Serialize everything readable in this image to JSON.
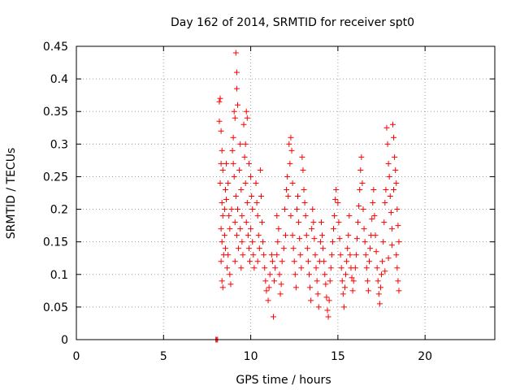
{
  "chart_data": {
    "type": "scatter",
    "title": "Day 162 of 2014, SRMTID for receiver spt0",
    "xlabel": "GPS time / hours",
    "ylabel": "SRMTID / TECUs",
    "xlim": [
      0,
      24
    ],
    "ylim": [
      0,
      0.45
    ],
    "xticks": [
      0,
      5,
      10,
      15,
      20
    ],
    "yticks": [
      0,
      0.05,
      0.1,
      0.15,
      0.2,
      0.25,
      0.3,
      0.35,
      0.4,
      0.45
    ],
    "xtick_labels": [
      "0",
      "5",
      "10",
      "15",
      "20"
    ],
    "ytick_labels": [
      "0",
      "0.05",
      "0.1",
      "0.15",
      "0.2",
      "0.25",
      "0.3",
      "0.35",
      "0.4",
      "0.45"
    ],
    "grid": true,
    "marker": "+",
    "series": [
      {
        "name": "SRMTID",
        "color": "#ff0000",
        "points": [
          [
            8.0,
            0.0
          ],
          [
            8.05,
            0.0
          ],
          [
            8.1,
            0.0
          ],
          [
            8.2,
            0.365
          ],
          [
            8.25,
            0.37
          ],
          [
            8.2,
            0.335
          ],
          [
            8.3,
            0.32
          ],
          [
            8.35,
            0.29
          ],
          [
            8.3,
            0.27
          ],
          [
            8.4,
            0.26
          ],
          [
            8.25,
            0.24
          ],
          [
            8.35,
            0.21
          ],
          [
            8.4,
            0.19
          ],
          [
            8.3,
            0.17
          ],
          [
            8.35,
            0.15
          ],
          [
            8.45,
            0.13
          ],
          [
            8.3,
            0.12
          ],
          [
            8.35,
            0.09
          ],
          [
            8.4,
            0.08
          ],
          [
            8.5,
            0.2
          ],
          [
            8.55,
            0.23
          ],
          [
            8.6,
            0.215
          ],
          [
            8.5,
            0.16
          ],
          [
            8.55,
            0.14
          ],
          [
            8.65,
            0.11
          ],
          [
            8.7,
            0.24
          ],
          [
            8.6,
            0.27
          ],
          [
            8.75,
            0.19
          ],
          [
            8.8,
            0.17
          ],
          [
            8.7,
            0.13
          ],
          [
            8.8,
            0.1
          ],
          [
            8.85,
            0.085
          ],
          [
            8.9,
            0.2
          ],
          [
            8.95,
            0.29
          ],
          [
            9.0,
            0.31
          ],
          [
            9.05,
            0.35
          ],
          [
            9.1,
            0.34
          ],
          [
            9.0,
            0.27
          ],
          [
            9.05,
            0.25
          ],
          [
            9.15,
            0.44
          ],
          [
            9.2,
            0.41
          ],
          [
            9.2,
            0.385
          ],
          [
            9.25,
            0.36
          ],
          [
            9.15,
            0.22
          ],
          [
            9.25,
            0.2
          ],
          [
            9.1,
            0.18
          ],
          [
            9.2,
            0.16
          ],
          [
            9.3,
            0.14
          ],
          [
            9.1,
            0.12
          ],
          [
            9.35,
            0.26
          ],
          [
            9.4,
            0.3
          ],
          [
            9.45,
            0.23
          ],
          [
            9.5,
            0.19
          ],
          [
            9.4,
            0.17
          ],
          [
            9.5,
            0.15
          ],
          [
            9.55,
            0.13
          ],
          [
            9.45,
            0.11
          ],
          [
            9.6,
            0.33
          ],
          [
            9.7,
            0.3
          ],
          [
            9.65,
            0.28
          ],
          [
            9.75,
            0.35
          ],
          [
            9.8,
            0.34
          ],
          [
            9.7,
            0.24
          ],
          [
            9.8,
            0.21
          ],
          [
            9.75,
            0.18
          ],
          [
            9.85,
            0.16
          ],
          [
            9.9,
            0.14
          ],
          [
            9.95,
            0.12
          ],
          [
            9.9,
            0.27
          ],
          [
            10.0,
            0.25
          ],
          [
            10.05,
            0.22
          ],
          [
            10.1,
            0.2
          ],
          [
            10.0,
            0.17
          ],
          [
            10.1,
            0.15
          ],
          [
            10.15,
            0.13
          ],
          [
            10.2,
            0.11
          ],
          [
            10.3,
            0.24
          ],
          [
            10.35,
            0.21
          ],
          [
            10.4,
            0.19
          ],
          [
            10.45,
            0.16
          ],
          [
            10.5,
            0.14
          ],
          [
            10.4,
            0.12
          ],
          [
            10.55,
            0.26
          ],
          [
            10.6,
            0.22
          ],
          [
            10.65,
            0.18
          ],
          [
            10.7,
            0.15
          ],
          [
            10.75,
            0.13
          ],
          [
            10.8,
            0.11
          ],
          [
            10.85,
            0.09
          ],
          [
            10.9,
            0.075
          ],
          [
            11.0,
            0.06
          ],
          [
            11.05,
            0.08
          ],
          [
            11.1,
            0.1
          ],
          [
            11.2,
            0.13
          ],
          [
            11.25,
            0.12
          ],
          [
            11.3,
            0.035
          ],
          [
            11.35,
            0.09
          ],
          [
            11.4,
            0.11
          ],
          [
            11.5,
            0.13
          ],
          [
            11.55,
            0.15
          ],
          [
            11.6,
            0.17
          ],
          [
            11.5,
            0.19
          ],
          [
            11.65,
            0.1
          ],
          [
            11.7,
            0.07
          ],
          [
            11.75,
            0.085
          ],
          [
            11.8,
            0.12
          ],
          [
            11.9,
            0.14
          ],
          [
            12.0,
            0.16
          ],
          [
            11.95,
            0.2
          ],
          [
            12.05,
            0.23
          ],
          [
            12.1,
            0.25
          ],
          [
            12.15,
            0.22
          ],
          [
            12.2,
            0.3
          ],
          [
            12.25,
            0.27
          ],
          [
            12.3,
            0.31
          ],
          [
            12.35,
            0.29
          ],
          [
            12.4,
            0.24
          ],
          [
            12.3,
            0.19
          ],
          [
            12.4,
            0.16
          ],
          [
            12.45,
            0.14
          ],
          [
            12.5,
            0.12
          ],
          [
            12.55,
            0.1
          ],
          [
            12.6,
            0.08
          ],
          [
            12.65,
            0.2
          ],
          [
            12.7,
            0.22
          ],
          [
            12.75,
            0.18
          ],
          [
            12.8,
            0.155
          ],
          [
            12.85,
            0.13
          ],
          [
            12.9,
            0.11
          ],
          [
            12.95,
            0.28
          ],
          [
            13.0,
            0.26
          ],
          [
            13.05,
            0.23
          ],
          [
            13.1,
            0.21
          ],
          [
            13.15,
            0.19
          ],
          [
            13.2,
            0.16
          ],
          [
            13.25,
            0.14
          ],
          [
            13.3,
            0.12
          ],
          [
            13.35,
            0.1
          ],
          [
            13.4,
            0.08
          ],
          [
            13.45,
            0.06
          ],
          [
            13.5,
            0.17
          ],
          [
            13.55,
            0.2
          ],
          [
            13.6,
            0.18
          ],
          [
            13.65,
            0.155
          ],
          [
            13.7,
            0.13
          ],
          [
            13.75,
            0.11
          ],
          [
            13.8,
            0.09
          ],
          [
            13.85,
            0.07
          ],
          [
            13.9,
            0.05
          ],
          [
            13.95,
            0.12
          ],
          [
            14.0,
            0.15
          ],
          [
            14.05,
            0.18
          ],
          [
            14.1,
            0.16
          ],
          [
            14.15,
            0.14
          ],
          [
            14.2,
            0.12
          ],
          [
            14.25,
            0.1
          ],
          [
            14.3,
            0.085
          ],
          [
            14.35,
            0.065
          ],
          [
            14.4,
            0.045
          ],
          [
            14.45,
            0.035
          ],
          [
            14.5,
            0.06
          ],
          [
            14.55,
            0.09
          ],
          [
            14.6,
            0.11
          ],
          [
            14.65,
            0.13
          ],
          [
            14.7,
            0.15
          ],
          [
            14.75,
            0.17
          ],
          [
            14.8,
            0.19
          ],
          [
            14.85,
            0.215
          ],
          [
            14.9,
            0.23
          ],
          [
            15.0,
            0.21
          ],
          [
            15.05,
            0.18
          ],
          [
            15.1,
            0.155
          ],
          [
            15.15,
            0.13
          ],
          [
            15.2,
            0.11
          ],
          [
            15.25,
            0.09
          ],
          [
            15.3,
            0.07
          ],
          [
            15.35,
            0.05
          ],
          [
            15.4,
            0.08
          ],
          [
            15.45,
            0.1
          ],
          [
            15.5,
            0.12
          ],
          [
            15.55,
            0.14
          ],
          [
            15.6,
            0.16
          ],
          [
            15.65,
            0.19
          ],
          [
            15.7,
            0.13
          ],
          [
            15.75,
            0.11
          ],
          [
            15.8,
            0.095
          ],
          [
            15.85,
            0.075
          ],
          [
            15.9,
            0.09
          ],
          [
            16.0,
            0.11
          ],
          [
            16.05,
            0.13
          ],
          [
            16.1,
            0.155
          ],
          [
            16.15,
            0.18
          ],
          [
            16.2,
            0.205
          ],
          [
            16.25,
            0.23
          ],
          [
            16.3,
            0.26
          ],
          [
            16.35,
            0.28
          ],
          [
            16.4,
            0.24
          ],
          [
            16.45,
            0.2
          ],
          [
            16.5,
            0.17
          ],
          [
            16.55,
            0.15
          ],
          [
            16.6,
            0.13
          ],
          [
            16.65,
            0.11
          ],
          [
            16.7,
            0.09
          ],
          [
            16.75,
            0.075
          ],
          [
            16.8,
            0.12
          ],
          [
            16.85,
            0.14
          ],
          [
            16.9,
            0.16
          ],
          [
            16.95,
            0.185
          ],
          [
            17.0,
            0.21
          ],
          [
            17.05,
            0.23
          ],
          [
            17.1,
            0.19
          ],
          [
            17.15,
            0.16
          ],
          [
            17.2,
            0.135
          ],
          [
            17.25,
            0.11
          ],
          [
            17.3,
            0.09
          ],
          [
            17.35,
            0.07
          ],
          [
            17.4,
            0.055
          ],
          [
            17.45,
            0.08
          ],
          [
            17.5,
            0.1
          ],
          [
            17.55,
            0.12
          ],
          [
            17.6,
            0.15
          ],
          [
            17.65,
            0.18
          ],
          [
            17.7,
            0.21
          ],
          [
            17.75,
            0.23
          ],
          [
            17.8,
            0.325
          ],
          [
            17.85,
            0.3
          ],
          [
            17.9,
            0.27
          ],
          [
            17.95,
            0.25
          ],
          [
            18.0,
            0.22
          ],
          [
            18.05,
            0.195
          ],
          [
            18.1,
            0.17
          ],
          [
            18.15,
            0.33
          ],
          [
            18.2,
            0.31
          ],
          [
            18.25,
            0.28
          ],
          [
            18.3,
            0.26
          ],
          [
            18.35,
            0.24
          ],
          [
            18.4,
            0.2
          ],
          [
            18.45,
            0.175
          ],
          [
            18.5,
            0.15
          ],
          [
            18.35,
            0.13
          ],
          [
            18.4,
            0.11
          ],
          [
            18.45,
            0.09
          ],
          [
            18.5,
            0.075
          ],
          [
            18.2,
            0.23
          ],
          [
            18.1,
            0.145
          ],
          [
            17.9,
            0.125
          ],
          [
            17.7,
            0.105
          ]
        ]
      }
    ]
  }
}
